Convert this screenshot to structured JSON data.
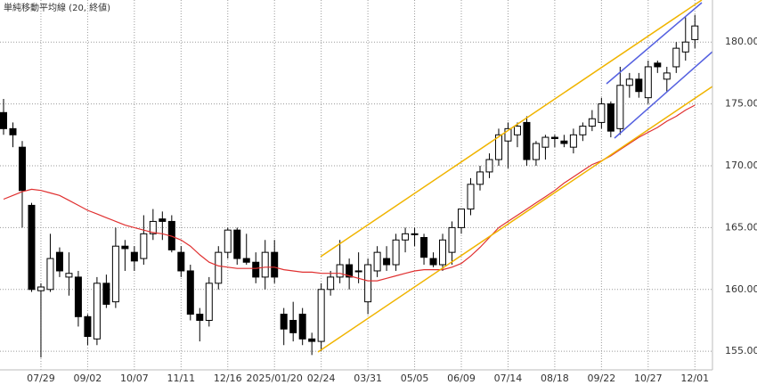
{
  "chart_data": {
    "type": "candlestick",
    "categories": [
      null,
      null,
      null,
      null,
      "07/29",
      null,
      null,
      null,
      null,
      "09/02",
      null,
      null,
      null,
      null,
      "10/07",
      null,
      null,
      null,
      null,
      "11/11",
      null,
      null,
      null,
      null,
      "12/16",
      null,
      null,
      null,
      null,
      "2025/01/20",
      null,
      null,
      null,
      null,
      "02/24",
      null,
      null,
      null,
      null,
      "03/31",
      null,
      null,
      null,
      null,
      "05/05",
      null,
      null,
      null,
      null,
      "06/09",
      null,
      null,
      null,
      null,
      "07/14",
      null,
      null,
      null,
      null,
      "08/18",
      null,
      null,
      null,
      null,
      "09/22",
      null,
      null,
      null,
      null,
      "10/27",
      null,
      null,
      null,
      null,
      "12/01"
    ],
    "open": [
      174.3,
      173.0,
      171.5,
      166.8,
      159.9,
      160.0,
      163.0,
      161.0,
      161.0,
      157.8,
      156.0,
      160.5,
      159.0,
      163.5,
      163.0,
      162.5,
      164.5,
      165.7,
      165.5,
      163.0,
      161.5,
      158.0,
      157.5,
      160.5,
      163.0,
      164.8,
      162.5,
      162.2,
      161.0,
      163.0,
      158.0,
      157.5,
      158.0,
      156.0,
      155.8,
      160.0,
      161.0,
      162.0,
      161.5,
      159.0,
      161.5,
      162.5,
      162.0,
      164.0,
      164.5,
      164.2,
      162.5,
      162.0,
      163.0,
      165.0,
      166.5,
      168.5,
      169.5,
      170.5,
      172.0,
      172.5,
      173.5,
      170.5,
      171.5,
      172.3,
      172.0,
      171.5,
      172.5,
      173.2,
      173.5,
      175.0,
      173.0,
      176.5,
      177.0,
      175.5,
      178.3,
      177.0,
      178.0,
      179.2,
      180.2
    ],
    "high": [
      175.4,
      173.5,
      172.0,
      167.0,
      160.5,
      164.5,
      163.4,
      163.0,
      161.5,
      158.0,
      161.0,
      161.2,
      165.0,
      164.0,
      163.5,
      166.0,
      166.5,
      166.3,
      166.0,
      163.5,
      162.0,
      158.5,
      161.0,
      163.5,
      165.0,
      165.0,
      164.5,
      163.0,
      164.0,
      164.0,
      158.5,
      159.0,
      158.5,
      156.5,
      160.5,
      161.5,
      164.0,
      162.5,
      163.0,
      162.5,
      163.5,
      163.5,
      164.5,
      165.0,
      165.0,
      164.5,
      163.0,
      164.5,
      165.5,
      166.5,
      169.0,
      170.0,
      171.0,
      173.0,
      173.5,
      173.5,
      174.0,
      172.0,
      172.5,
      172.5,
      172.5,
      173.0,
      173.5,
      174.5,
      175.5,
      175.2,
      178.0,
      177.5,
      177.5,
      178.5,
      178.5,
      178.0,
      180.0,
      182.0,
      182.2
    ],
    "low": [
      172.5,
      171.5,
      165.0,
      159.8,
      154.5,
      159.8,
      161.0,
      159.5,
      157.0,
      155.5,
      155.5,
      158.5,
      158.5,
      161.5,
      161.5,
      162.0,
      164.0,
      164.0,
      163.0,
      161.0,
      157.5,
      155.8,
      157.0,
      160.0,
      162.5,
      162.0,
      162.0,
      160.5,
      160.0,
      160.5,
      155.5,
      155.8,
      155.5,
      154.7,
      155.0,
      159.5,
      160.5,
      160.0,
      160.5,
      158.0,
      161.0,
      161.5,
      161.5,
      163.0,
      163.5,
      162.0,
      161.8,
      161.5,
      162.0,
      164.5,
      166.0,
      168.0,
      169.0,
      170.0,
      169.8,
      171.5,
      170.0,
      170.0,
      170.5,
      171.5,
      171.5,
      171.0,
      172.0,
      172.8,
      173.0,
      172.3,
      172.5,
      175.5,
      175.5,
      175.0,
      177.5,
      176.0,
      177.5,
      178.5,
      179.5
    ],
    "close": [
      173.0,
      172.5,
      168.0,
      160.0,
      160.2,
      162.5,
      161.5,
      161.3,
      157.8,
      156.2,
      160.5,
      158.8,
      163.5,
      163.3,
      162.3,
      164.5,
      165.5,
      165.5,
      163.2,
      161.5,
      158.0,
      157.5,
      160.5,
      163.0,
      164.8,
      162.5,
      162.2,
      161.0,
      163.0,
      161.0,
      156.8,
      156.5,
      156.0,
      155.8,
      160.0,
      161.0,
      162.0,
      161.0,
      161.5,
      162.0,
      163.0,
      162.0,
      164.0,
      164.5,
      164.5,
      162.6,
      162.0,
      164.0,
      165.0,
      166.5,
      168.5,
      169.5,
      170.5,
      172.5,
      173.0,
      173.2,
      170.5,
      171.8,
      172.3,
      172.2,
      171.8,
      172.5,
      173.2,
      173.8,
      175.0,
      172.8,
      176.5,
      177.0,
      176.0,
      178.0,
      178.0,
      177.5,
      179.5,
      180.0,
      181.3
    ],
    "up_color": "#ffffff",
    "down_color": "#000000",
    "series": [
      {
        "name": "単純移動平均線 (20, 終値)",
        "color": "#e03030",
        "values": [
          167.3,
          167.6,
          167.9,
          168.1,
          168.0,
          167.8,
          167.6,
          167.2,
          166.8,
          166.4,
          166.1,
          165.8,
          165.5,
          165.2,
          165.0,
          164.8,
          164.6,
          164.5,
          164.3,
          164.0,
          163.5,
          162.8,
          162.2,
          161.9,
          161.8,
          161.7,
          161.7,
          161.7,
          161.8,
          161.8,
          161.6,
          161.5,
          161.4,
          161.4,
          161.3,
          161.3,
          161.3,
          161.1,
          160.9,
          160.7,
          160.7,
          160.9,
          161.1,
          161.3,
          161.5,
          161.6,
          161.6,
          161.6,
          161.8,
          162.1,
          162.7,
          163.4,
          164.2,
          165.0,
          165.5,
          166.0,
          166.5,
          167.0,
          167.5,
          168.0,
          168.6,
          169.1,
          169.6,
          170.1,
          170.4,
          170.8,
          171.3,
          171.8,
          172.3,
          172.7,
          173.1,
          173.6,
          174.0,
          174.5,
          174.9
        ]
      }
    ],
    "ylim": [
      153.5,
      183.4
    ],
    "yticks": [
      {
        "value": 155,
        "label": "155.000"
      },
      {
        "value": 160,
        "label": "160.000"
      },
      {
        "value": 165,
        "label": "165.000"
      },
      {
        "value": 170,
        "label": "170.000"
      },
      {
        "value": 175,
        "label": "175.000"
      },
      {
        "value": 180,
        "label": "180.000"
      }
    ],
    "grid": true
  }
}
